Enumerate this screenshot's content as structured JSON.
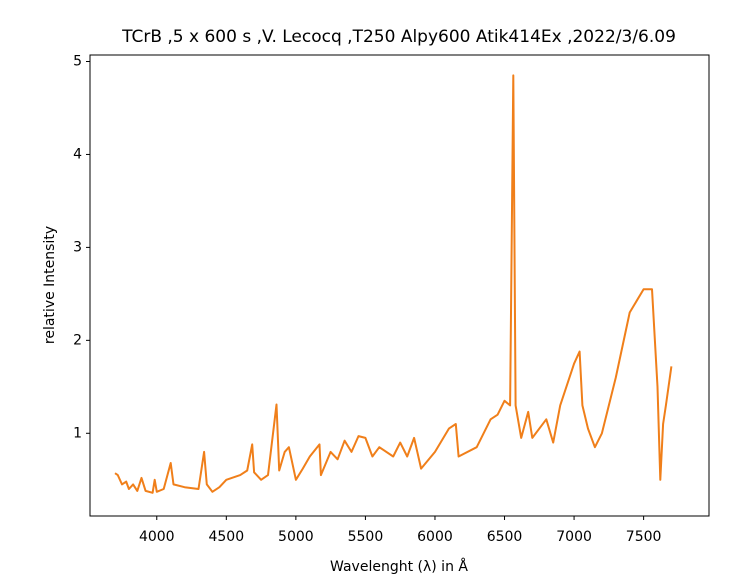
{
  "chart_data": {
    "type": "line",
    "title": "TCrB ,5 x 600 s ,V. Lecocq ,T250 Alpy600 Atik414Ex ,2022/3/6.09",
    "xlabel": "Wavelenght (λ) in Å",
    "ylabel": "relative Intensity",
    "xlim": [
      3520,
      7970
    ],
    "ylim": [
      0.11,
      5.07
    ],
    "xticks": [
      4000,
      4500,
      5000,
      5500,
      6000,
      6500,
      7000,
      7500
    ],
    "yticks": [
      1,
      2,
      3,
      4,
      5
    ],
    "series": [
      {
        "color": "#f07f1a",
        "x": [
          3700,
          3720,
          3750,
          3780,
          3800,
          3830,
          3860,
          3890,
          3920,
          3970,
          3985,
          4000,
          4050,
          4100,
          4120,
          4200,
          4300,
          4340,
          4360,
          4400,
          4450,
          4500,
          4600,
          4650,
          4686,
          4700,
          4750,
          4800,
          4861,
          4880,
          4920,
          4950,
          5000,
          5050,
          5100,
          5170,
          5180,
          5250,
          5300,
          5350,
          5400,
          5450,
          5500,
          5550,
          5600,
          5700,
          5750,
          5800,
          5850,
          5900,
          6000,
          6100,
          6150,
          6170,
          6300,
          6400,
          6450,
          6500,
          6540,
          6563,
          6580,
          6620,
          6670,
          6700,
          6800,
          6850,
          6900,
          7000,
          7040,
          7060,
          7100,
          7150,
          7200,
          7300,
          7400,
          7500,
          7560,
          7600,
          7620,
          7640,
          7660,
          7700
        ],
        "values": [
          0.57,
          0.55,
          0.45,
          0.48,
          0.4,
          0.45,
          0.38,
          0.52,
          0.38,
          0.36,
          0.5,
          0.37,
          0.4,
          0.68,
          0.45,
          0.42,
          0.4,
          0.8,
          0.45,
          0.37,
          0.42,
          0.5,
          0.55,
          0.6,
          0.88,
          0.58,
          0.5,
          0.55,
          1.31,
          0.6,
          0.8,
          0.85,
          0.5,
          0.62,
          0.75,
          0.88,
          0.55,
          0.8,
          0.72,
          0.92,
          0.8,
          0.97,
          0.95,
          0.75,
          0.85,
          0.75,
          0.9,
          0.75,
          0.95,
          0.62,
          0.8,
          1.05,
          1.1,
          0.75,
          0.85,
          1.15,
          1.2,
          1.35,
          1.3,
          4.85,
          1.3,
          0.95,
          1.23,
          0.95,
          1.15,
          0.9,
          1.3,
          1.75,
          1.88,
          1.3,
          1.05,
          0.85,
          1.0,
          1.6,
          2.3,
          2.55,
          2.55,
          1.5,
          0.5,
          1.1,
          1.3,
          1.72
        ]
      }
    ]
  }
}
